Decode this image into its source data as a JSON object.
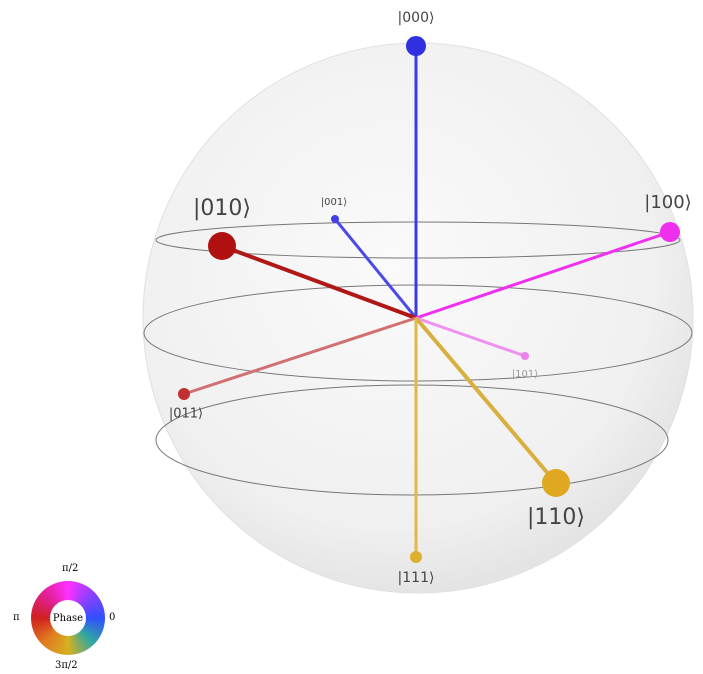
{
  "states": [
    "|000⟩",
    "|001⟩",
    "|010⟩",
    "|100⟩",
    "|011⟩",
    "|101⟩",
    "|110⟩",
    "|111⟩"
  ],
  "phase_wheel": {
    "title": "Phase",
    "top": "π/2",
    "left": "π",
    "right": "0",
    "bottom": "3π/2"
  }
}
